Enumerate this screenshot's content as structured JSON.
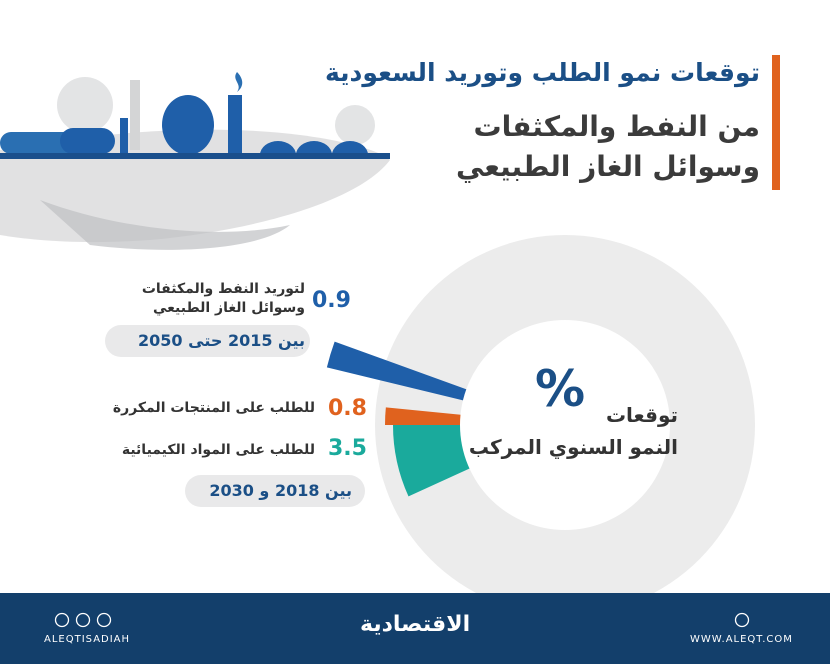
{
  "header": {
    "title_line1": "توقعات نمو الطلب وتوريد السعودية",
    "title_line2": "من النفط والمكثفات",
    "title_line3": "وسوائل الغاز الطبيعي"
  },
  "chart_data": {
    "type": "radial-wedges",
    "center_symbol": "%",
    "center_line1": "توقعات",
    "center_line2": "النمو السنوي المركب",
    "series": [
      {
        "name": "لتوريد النفط والمكثفات وسوائل الغاز الطبيعي",
        "color": "#1f5fa9",
        "values": [
          0.9
        ]
      },
      {
        "name": "للطلب على المنتجات المكررة",
        "color": "#e0621e",
        "values": [
          0.8
        ]
      },
      {
        "name": "للطلب على المواد الكيميائية",
        "color": "#1aaa9c",
        "values": [
          3.5
        ]
      }
    ],
    "periods": [
      "بين 2015 حتى 2050",
      "بين 2018 و 2030"
    ]
  },
  "footer": {
    "social": "ALEQTISADIAH",
    "logo": "الاقتصادية",
    "website": "WWW.ALEQT.COM"
  }
}
